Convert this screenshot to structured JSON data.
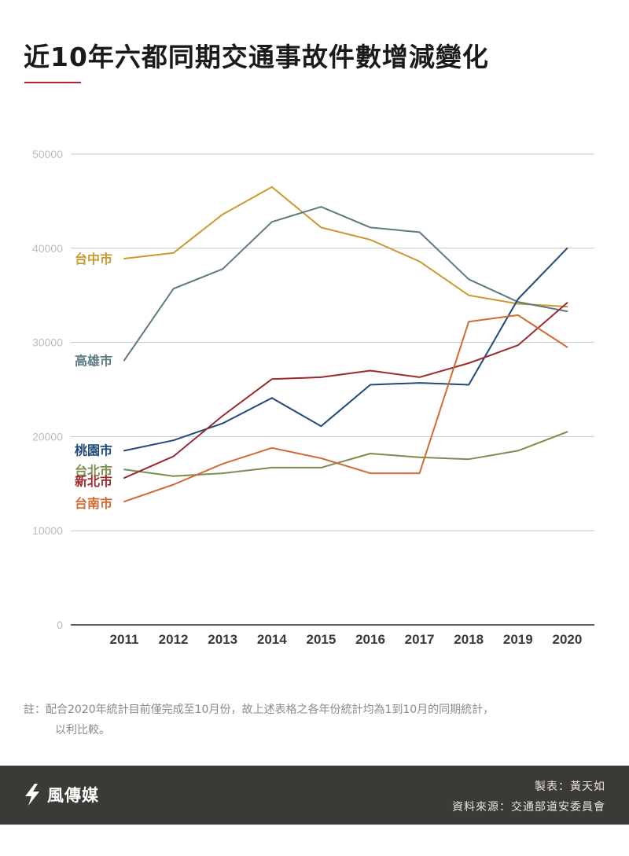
{
  "title": "近10年六都同期交通事故件數增減變化",
  "colors": {
    "accent": "#b5262b",
    "grid": "#c8c8c8",
    "axis": "#333333",
    "tick": "#bdbdbd",
    "footer_bg": "#3c3a36",
    "footer_text": "#e8e5e0"
  },
  "chart_data": {
    "type": "line",
    "title": "近10年六都同期交通事故件數增減變化",
    "xlabel": "",
    "ylabel": "",
    "ylim": [
      0,
      50000
    ],
    "yticks": [
      0,
      10000,
      20000,
      30000,
      40000,
      50000
    ],
    "grid": true,
    "categories": [
      "2011",
      "2012",
      "2013",
      "2014",
      "2015",
      "2016",
      "2017",
      "2018",
      "2019",
      "2020"
    ],
    "series": [
      {
        "name": "台中市",
        "color": "#c99a2e",
        "values": [
          38900,
          39500,
          43600,
          46500,
          42200,
          40900,
          38600,
          35000,
          34100,
          33800
        ]
      },
      {
        "name": "高雄市",
        "color": "#5d7a82",
        "values": [
          28100,
          35700,
          37800,
          42800,
          44400,
          42200,
          41700,
          36700,
          34300,
          33300
        ]
      },
      {
        "name": "桃園市",
        "color": "#1f4a7a",
        "values": [
          18500,
          19600,
          21400,
          24100,
          21100,
          25500,
          25700,
          25500,
          34600,
          40000
        ]
      },
      {
        "name": "台北市",
        "color": "#7a8f4e",
        "values": [
          16500,
          15800,
          16100,
          16700,
          16700,
          18200,
          17800,
          17600,
          18500,
          20500
        ]
      },
      {
        "name": "新北市",
        "color": "#9b2a2f",
        "values": [
          15600,
          17900,
          22200,
          26100,
          26300,
          27000,
          26300,
          27800,
          29700,
          34200
        ]
      },
      {
        "name": "台南市",
        "color": "#d26a33",
        "values": [
          13100,
          14900,
          17100,
          18800,
          17700,
          16100,
          16100,
          32200,
          32900,
          29500
        ]
      }
    ]
  },
  "note": {
    "line1": "註：配合2020年統計目前僅完成至10月份，故上述表格之各年份統計均為1到10月的同期統計，",
    "line2": "以利比較。"
  },
  "footer": {
    "brand": "風傳媒",
    "credit_author": "製表：黃天如",
    "credit_source": "資料來源：交通部道安委員會"
  }
}
